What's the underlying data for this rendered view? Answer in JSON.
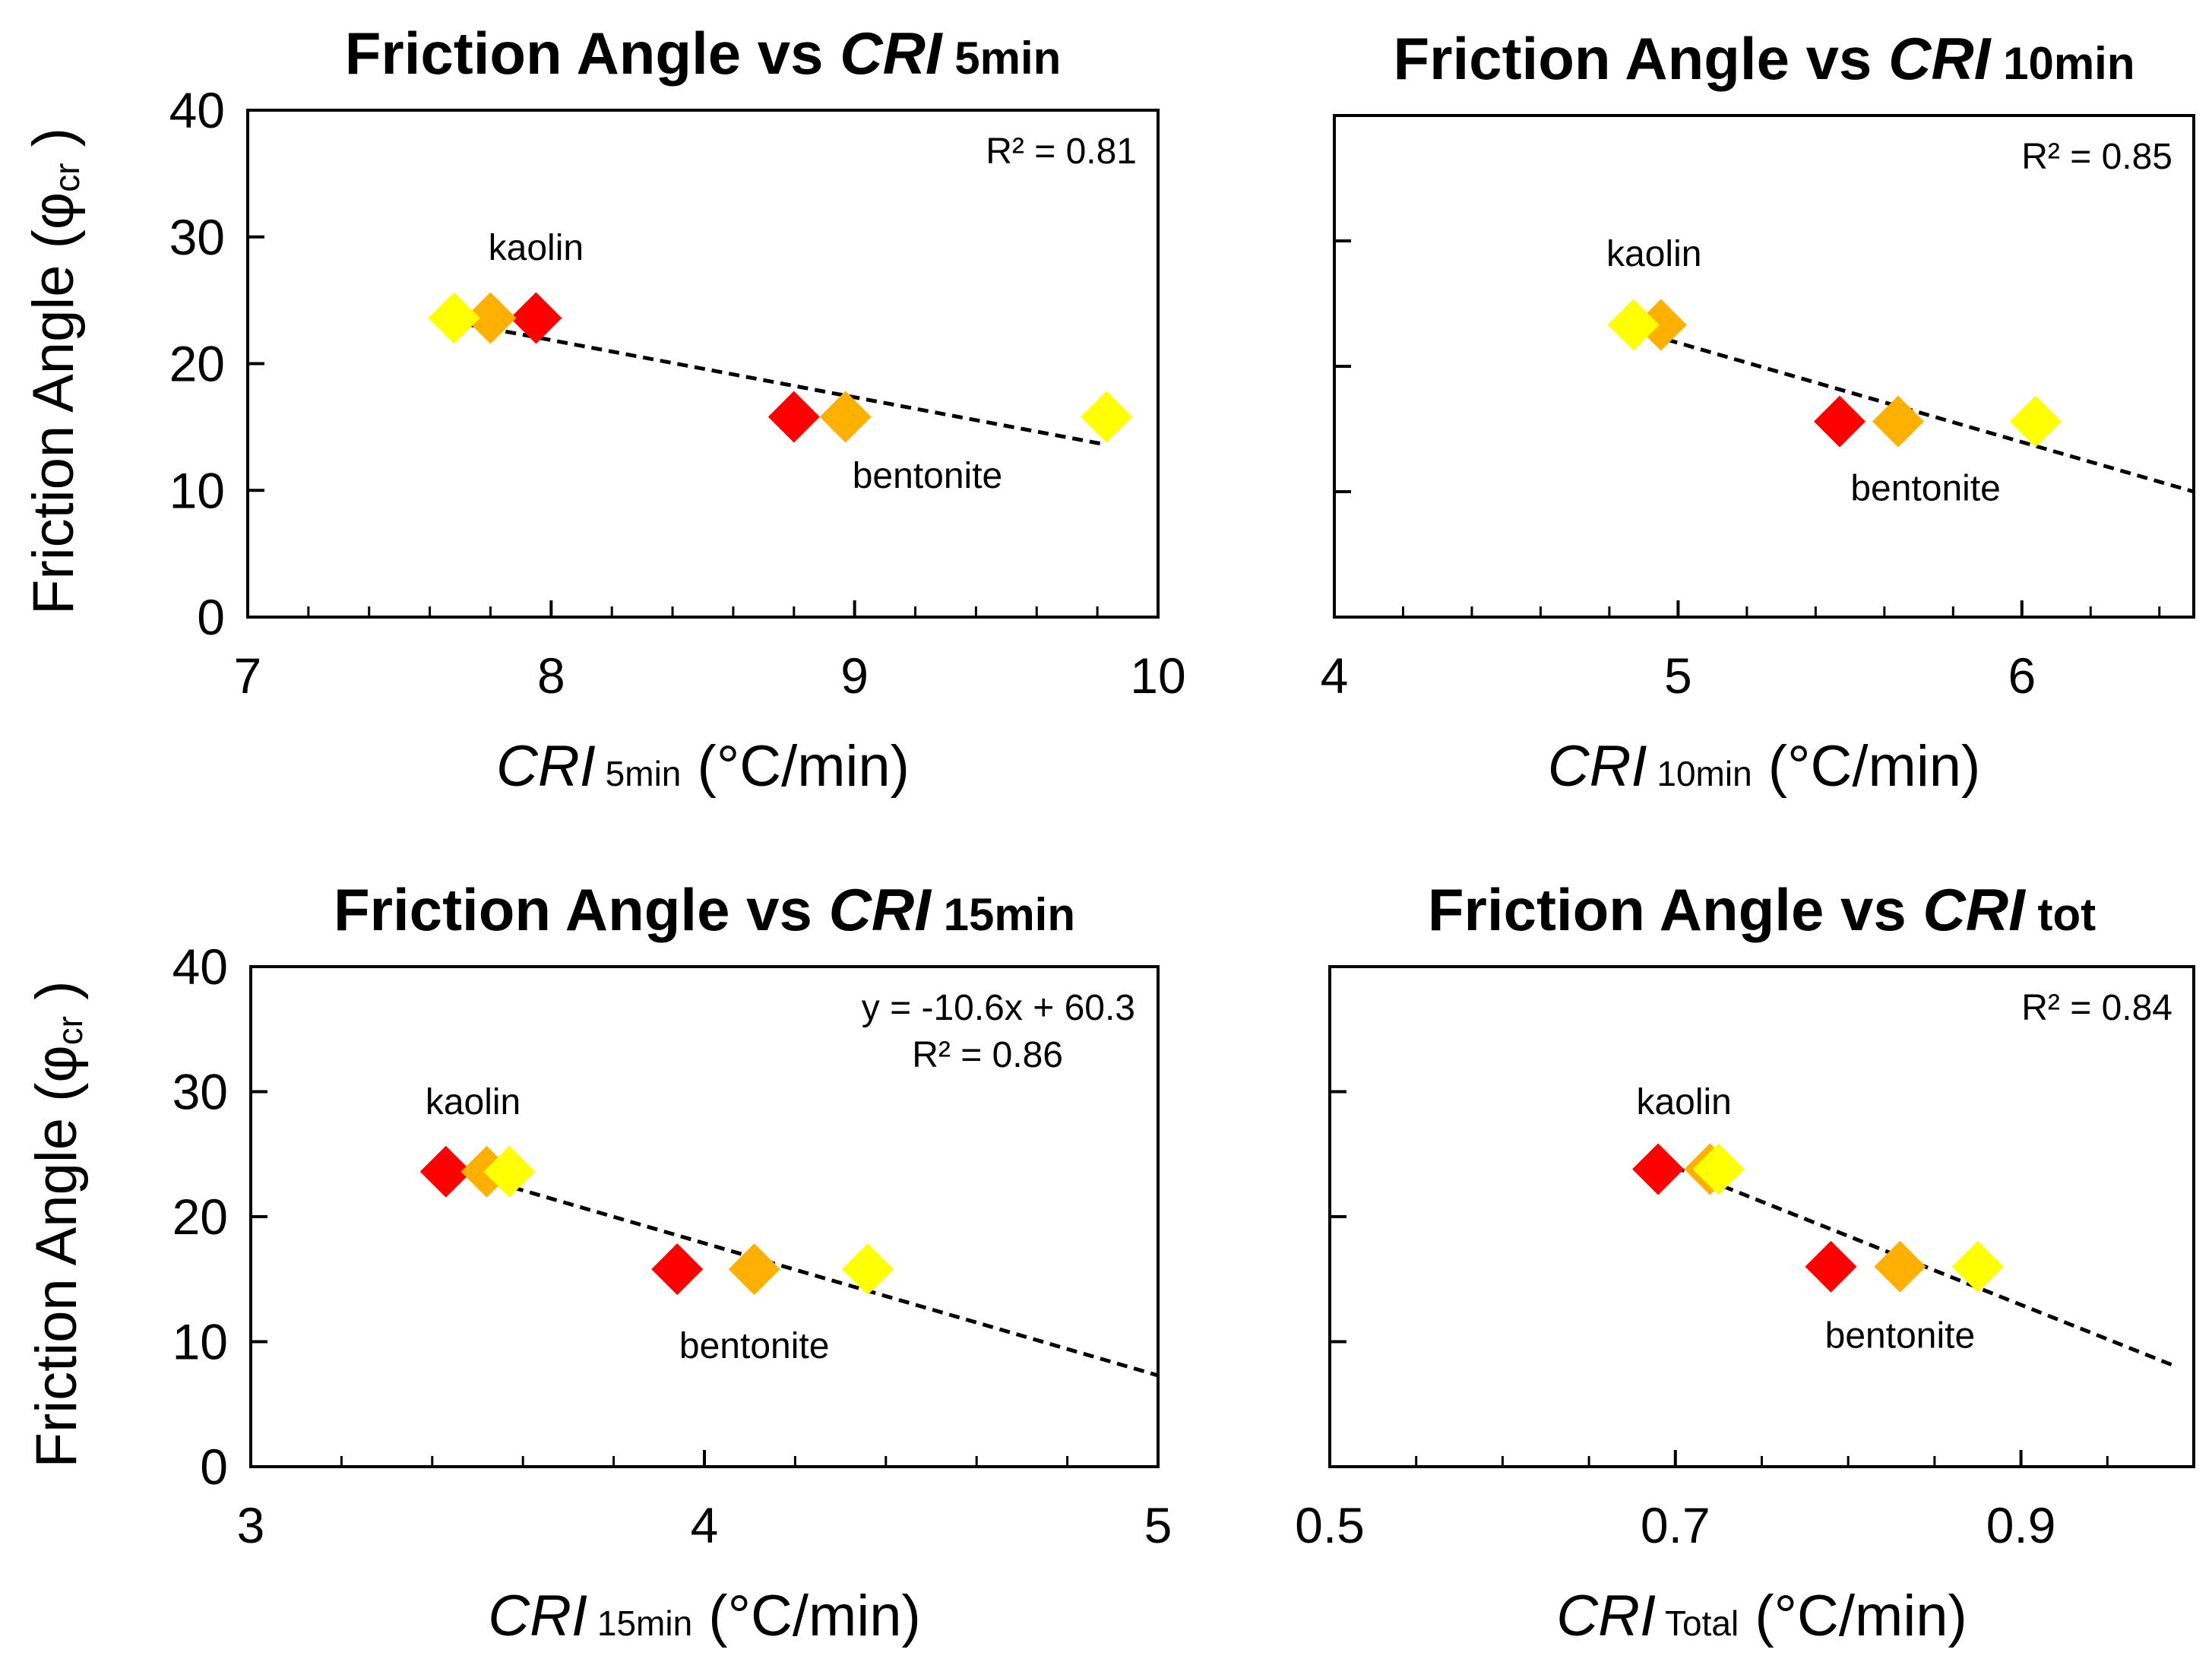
{
  "figure_title": "Friction Angle vs CRI",
  "chart_data": [
    {
      "type": "scatter",
      "title": {
        "main": "Friction Angle vs ",
        "italic": "CRI",
        "suffix": " 5min"
      },
      "xlabel": {
        "italic": "CRI",
        "sub": " 5min",
        "unit": " (°C/min)"
      },
      "ylabel": {
        "main": "Friction Angle",
        "symbol": "(φ",
        "sub": "cr",
        "close": " )"
      },
      "xlim": [
        7,
        10
      ],
      "ylim": [
        0,
        40
      ],
      "xticks": [
        7,
        8,
        9,
        10
      ],
      "xtick_labels": [
        "7",
        "8",
        "9",
        "10"
      ],
      "xminor": [
        7.2,
        7.4,
        7.6,
        7.8,
        8.2,
        8.4,
        8.6,
        8.8,
        9.2,
        9.4,
        9.6,
        9.8
      ],
      "yticks": [
        0,
        10,
        20,
        30,
        40
      ],
      "ytick_labels": [
        "0",
        "10",
        "20",
        "30",
        "40"
      ],
      "show_ylabels": true,
      "series": [
        {
          "name": "red",
          "color": "#ff0000",
          "x": [
            7.95,
            8.8
          ],
          "y": [
            23.6,
            15.8
          ]
        },
        {
          "name": "orange",
          "color": "#ffb000",
          "x": [
            7.8,
            8.97
          ],
          "y": [
            23.6,
            15.8
          ]
        },
        {
          "name": "yellow",
          "color": "#ffff00",
          "x": [
            7.68,
            9.83
          ],
          "y": [
            23.6,
            15.8
          ]
        }
      ],
      "trendline": {
        "x": [
          7.68,
          9.83
        ],
        "y": [
          23.3,
          13.6
        ]
      },
      "equation": [],
      "r2": "R² = 0.81",
      "annotations": [
        {
          "text": "kaolin",
          "x": 7.95,
          "y": 28.2
        },
        {
          "text": "bentonite",
          "x": 9.24,
          "y": 10.2
        }
      ]
    },
    {
      "type": "scatter",
      "title": {
        "main": "Friction Angle vs ",
        "italic": "CRI",
        "suffix": " 10min"
      },
      "xlabel": {
        "italic": "CRI",
        "sub": " 10min",
        "unit": " (°C/min)"
      },
      "ylabel": null,
      "xlim": [
        4,
        6.5
      ],
      "ylim": [
        0,
        40
      ],
      "xticks": [
        4,
        5,
        6
      ],
      "xtick_labels": [
        "4",
        "5",
        "6"
      ],
      "xminor": [
        4.2,
        4.4,
        4.6,
        4.8,
        5.2,
        5.4,
        5.6,
        5.8,
        6.2,
        6.4
      ],
      "yticks": [
        0,
        10,
        20,
        30,
        40
      ],
      "ytick_labels": [
        "",
        "",
        "",
        "",
        ""
      ],
      "show_ylabels": false,
      "series": [
        {
          "name": "red",
          "color": "#ff0000",
          "x": [
            5.47
          ],
          "y": [
            15.6
          ]
        },
        {
          "name": "orange",
          "color": "#ffb000",
          "x": [
            4.95,
            5.64
          ],
          "y": [
            23.3,
            15.6
          ]
        },
        {
          "name": "yellow",
          "color": "#ffff00",
          "x": [
            4.87,
            6.04
          ],
          "y": [
            23.3,
            15.6
          ]
        }
      ],
      "trendline": {
        "x": [
          4.87,
          6.5
        ],
        "y": [
          22.9,
          10.0
        ]
      },
      "equation": [],
      "r2": "R² = 0.85",
      "annotations": [
        {
          "text": "kaolin",
          "x": 4.93,
          "y": 28.0
        },
        {
          "text": "bentonite",
          "x": 5.72,
          "y": 9.3
        }
      ]
    },
    {
      "type": "scatter",
      "title": {
        "main": "Friction Angle vs ",
        "italic": "CRI",
        "suffix": " 15min"
      },
      "xlabel": {
        "italic": "CRI",
        "sub": " 15min",
        "unit": " (°C/min)"
      },
      "ylabel": {
        "main": "Friction Angle",
        "symbol": "(φ",
        "sub": "cr",
        "close": " )"
      },
      "xlim": [
        3,
        5
      ],
      "ylim": [
        0,
        40
      ],
      "xticks": [
        3,
        4,
        5
      ],
      "xtick_labels": [
        "3",
        "4",
        "5"
      ],
      "xminor": [
        3.2,
        3.4,
        3.6,
        3.8,
        4.2,
        4.4,
        4.6,
        4.8
      ],
      "yticks": [
        0,
        10,
        20,
        30,
        40
      ],
      "ytick_labels": [
        "0",
        "10",
        "20",
        "30",
        "40"
      ],
      "show_ylabels": true,
      "series": [
        {
          "name": "red",
          "color": "#ff0000",
          "x": [
            3.43,
            3.94
          ],
          "y": [
            23.6,
            15.8
          ]
        },
        {
          "name": "orange",
          "color": "#ffb000",
          "x": [
            3.52,
            4.11
          ],
          "y": [
            23.6,
            15.8
          ]
        },
        {
          "name": "yellow",
          "color": "#ffff00",
          "x": [
            3.57,
            4.36
          ],
          "y": [
            23.6,
            15.8
          ]
        }
      ],
      "trendline": {
        "x": [
          3.43,
          5.0
        ],
        "y": [
          23.9,
          7.3
        ]
      },
      "equation": [
        "y = -10.6x + 60.3",
        "R² = 0.86"
      ],
      "r2": "",
      "annotations": [
        {
          "text": "kaolin",
          "x": 3.49,
          "y": 28.2
        },
        {
          "text": "bentonite",
          "x": 4.11,
          "y": 8.7
        }
      ]
    },
    {
      "type": "scatter",
      "title": {
        "main": "Friction Angle vs ",
        "italic": "CRI",
        "suffix": " tot"
      },
      "xlabel": {
        "italic": "CRI",
        "sub": " Total",
        "unit": " (°C/min)"
      },
      "ylabel": null,
      "xlim": [
        0.5,
        1.0
      ],
      "ylim": [
        0,
        40
      ],
      "xticks": [
        0.5,
        0.7,
        0.9
      ],
      "xtick_labels": [
        "0.5",
        "0.7",
        "0.9"
      ],
      "xminor": [
        0.55,
        0.6,
        0.65,
        0.75,
        0.8,
        0.85,
        0.95
      ],
      "yticks": [
        0,
        10,
        20,
        30,
        40
      ],
      "ytick_labels": [
        "",
        "",
        "",
        "",
        ""
      ],
      "show_ylabels": false,
      "series": [
        {
          "name": "red",
          "color": "#ff0000",
          "x": [
            0.69,
            0.79
          ],
          "y": [
            23.8,
            16.0
          ]
        },
        {
          "name": "orange",
          "color": "#ffb000",
          "x": [
            0.72,
            0.83
          ],
          "y": [
            23.8,
            16.0
          ]
        },
        {
          "name": "yellow",
          "color": "#ffff00",
          "x": [
            0.725,
            0.875
          ],
          "y": [
            23.8,
            16.0
          ]
        }
      ],
      "trendline": {
        "x": [
          0.69,
          0.99
        ],
        "y": [
          24.5,
          8.0
        ]
      },
      "equation": [],
      "r2": "R² = 0.84",
      "annotations": [
        {
          "text": "kaolin",
          "x": 0.705,
          "y": 28.2
        },
        {
          "text": "bentonite",
          "x": 0.83,
          "y": 9.5
        }
      ]
    }
  ]
}
